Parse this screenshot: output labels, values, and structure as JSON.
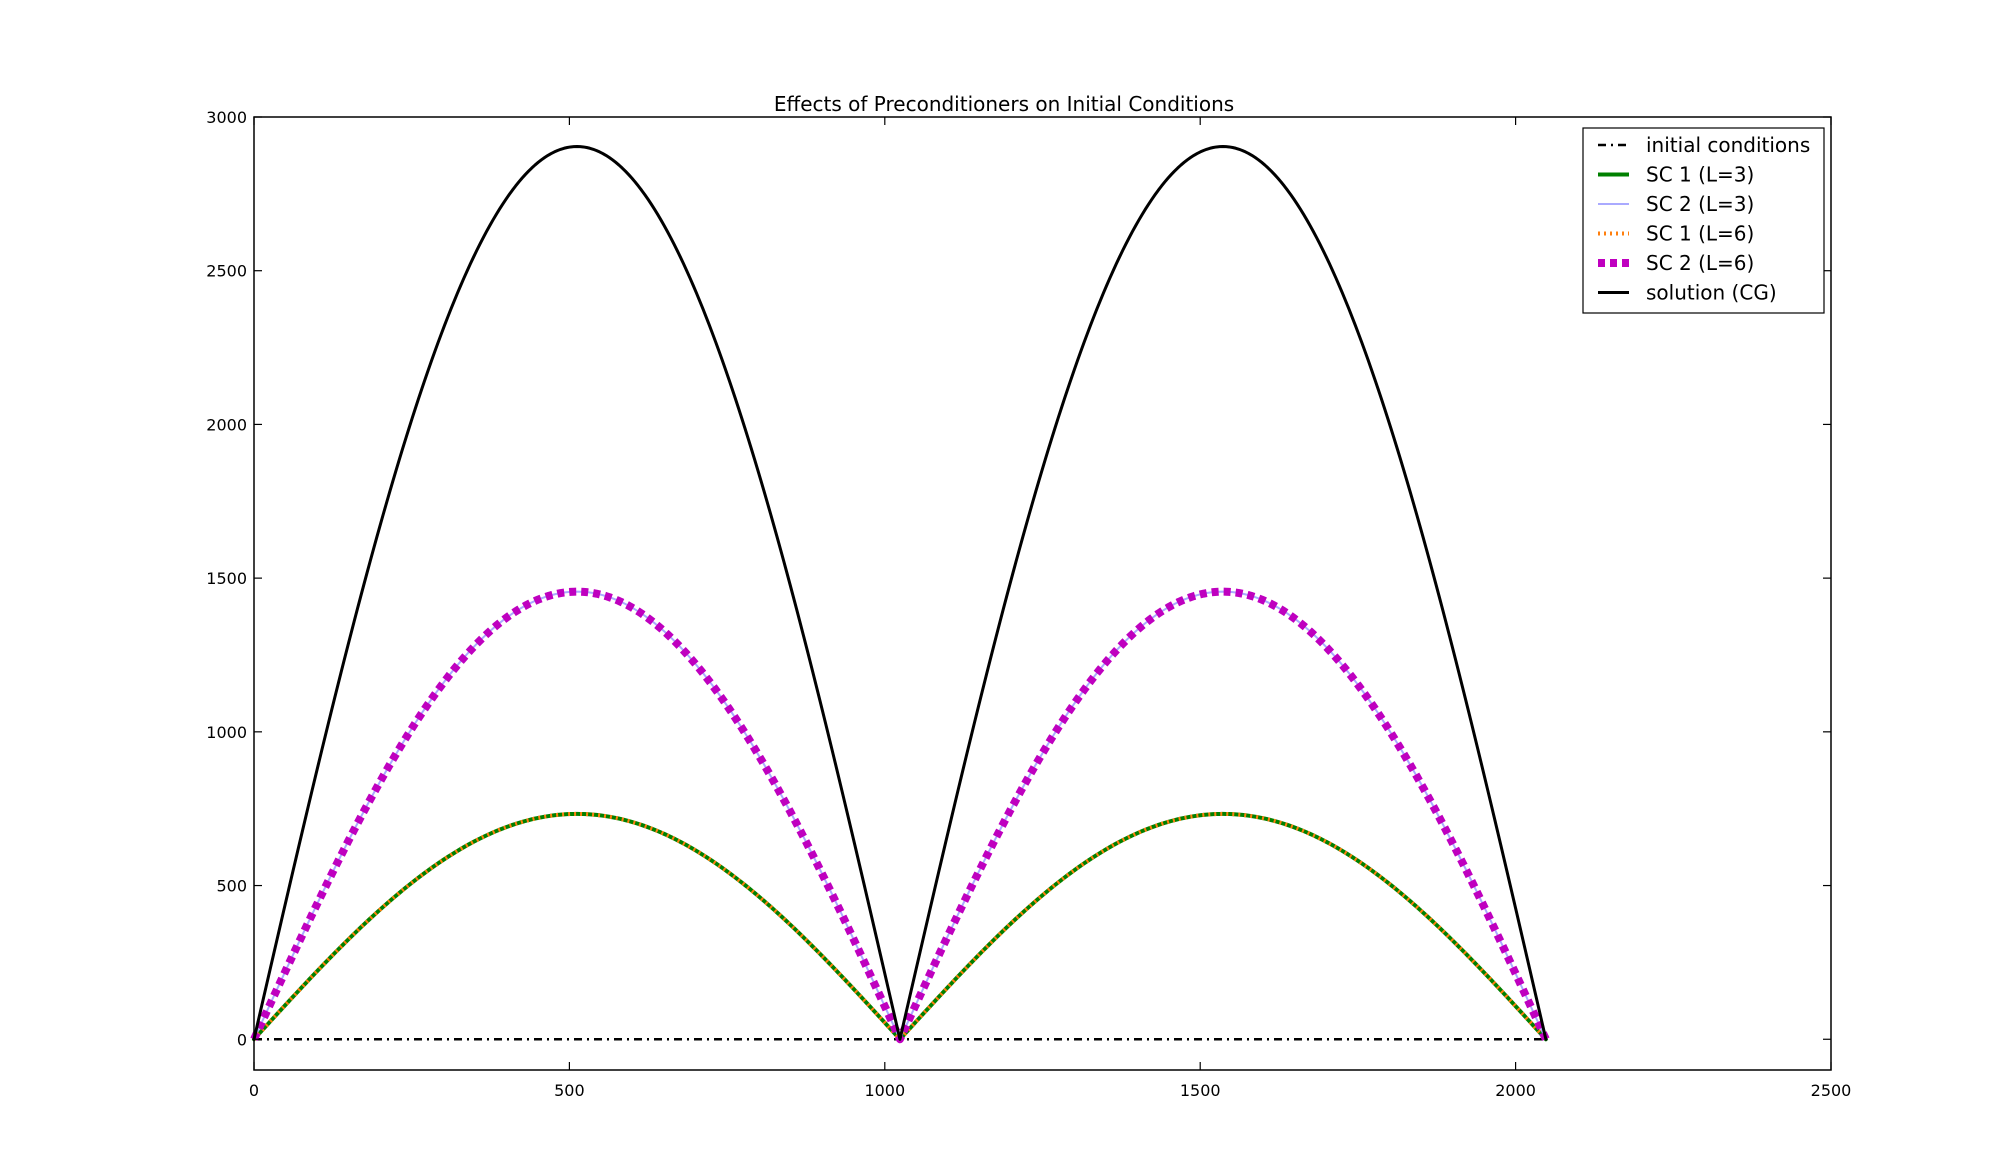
{
  "chart_data": {
    "type": "line",
    "title": "Effects of Preconditioners on Initial Conditions",
    "xlabel": "",
    "ylabel": "",
    "xlim": [
      0,
      2500
    ],
    "ylim": [
      -100,
      3000
    ],
    "xticks": [
      0,
      500,
      1000,
      1500,
      2000,
      2500
    ],
    "yticks": [
      0,
      500,
      1000,
      1500,
      2000,
      2500,
      3000
    ],
    "grid": false,
    "legend_position": "top-right",
    "x_domain": [
      0,
      2048
    ],
    "series": [
      {
        "name": "initial conditions",
        "color": "#000000",
        "style": "dash-dot",
        "shape": "flat",
        "peak": 0
      },
      {
        "name": "SC 1 (L=3)",
        "color": "#008000",
        "style": "solid-thick",
        "shape": "double-arch",
        "peak": 733
      },
      {
        "name": "SC 2 (L=3)",
        "color": "#aaaaff",
        "style": "solid-thin",
        "shape": "double-arch",
        "peak": 1456
      },
      {
        "name": "SC 1 (L=6)",
        "color": "#ff7f0e",
        "style": "dotted",
        "shape": "double-arch",
        "peak": 733
      },
      {
        "name": "SC 2 (L=6)",
        "color": "#bf00bf",
        "style": "dotted-thick",
        "shape": "double-arch",
        "peak": 1456
      },
      {
        "name": "solution (CG)",
        "color": "#000000",
        "style": "solid",
        "shape": "double-arch",
        "peak": 2904
      }
    ]
  }
}
